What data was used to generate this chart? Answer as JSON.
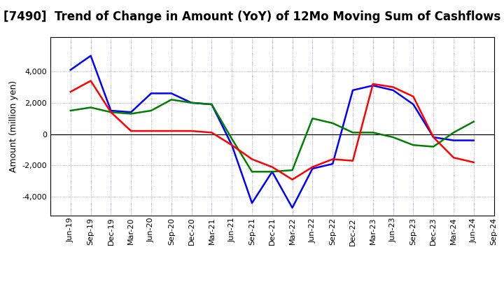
{
  "title": "[7490]  Trend of Change in Amount (YoY) of 12Mo Moving Sum of Cashflows",
  "ylabel": "Amount (million yen)",
  "background_color": "#ffffff",
  "grid_color": "#9999bb",
  "x_labels": [
    "Jun-19",
    "Sep-19",
    "Dec-19",
    "Mar-20",
    "Jun-20",
    "Sep-20",
    "Dec-20",
    "Mar-21",
    "Jun-21",
    "Sep-21",
    "Dec-21",
    "Mar-22",
    "Jun-22",
    "Sep-22",
    "Dec-22",
    "Mar-23",
    "Jun-23",
    "Sep-23",
    "Dec-23",
    "Mar-24",
    "Jun-24",
    "Sep-24"
  ],
  "operating_cashflow": [
    2700,
    3400,
    1400,
    200,
    200,
    200,
    200,
    100,
    -700,
    -1600,
    -2100,
    -2900,
    -2100,
    -1600,
    -1700,
    3200,
    3000,
    2400,
    -200,
    -1500,
    -1800,
    null
  ],
  "investing_cashflow": [
    1500,
    1700,
    1400,
    1300,
    1500,
    2200,
    2000,
    1900,
    -300,
    -2400,
    -2400,
    -2300,
    1000,
    700,
    100,
    100,
    -200,
    -700,
    -800,
    100,
    800,
    null
  ],
  "free_cashflow": [
    4100,
    5000,
    1500,
    1400,
    2600,
    2600,
    2000,
    1900,
    -700,
    -4400,
    -2400,
    -4700,
    -2200,
    -1900,
    2800,
    3100,
    2800,
    1900,
    -200,
    -400,
    -400,
    null
  ],
  "operating_color": "#ff0000",
  "investing_color": "#008000",
  "free_color": "#0000ff",
  "ylim": [
    -5200,
    6200
  ],
  "yticks": [
    -4000,
    -2000,
    0,
    2000,
    4000
  ],
  "title_fontsize": 12,
  "label_fontsize": 9,
  "tick_fontsize": 8,
  "legend_fontsize": 9,
  "line_width": 1.8
}
